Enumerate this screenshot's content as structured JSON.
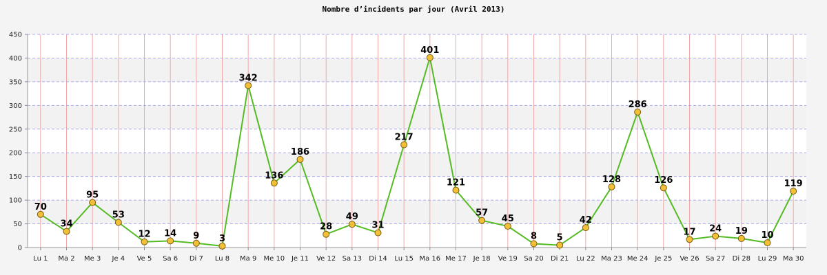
{
  "chart_data": {
    "type": "line",
    "title": "Nombre d’incidents par jour (Avril 2013)",
    "xlabel": "",
    "ylabel": "",
    "ylim": [
      0,
      450
    ],
    "yticks": [
      0,
      50,
      100,
      150,
      200,
      250,
      300,
      350,
      400,
      450
    ],
    "categories": [
      "Lu 1",
      "Ma 2",
      "Me 3",
      "Je 4",
      "Ve 5",
      "Sa 6",
      "Di 7",
      "Lu 8",
      "Ma 9",
      "Me 10",
      "Je 11",
      "Ve 12",
      "Sa 13",
      "Di 14",
      "Lu 15",
      "Ma 16",
      "Me 17",
      "Je 18",
      "Ve 19",
      "Sa 20",
      "Di 21",
      "Lu 22",
      "Ma 23",
      "Me 24",
      "Je 25",
      "Ve 26",
      "Sa 27",
      "Di 28",
      "Lu 29",
      "Ma 30"
    ],
    "values": [
      70,
      34,
      95,
      53,
      12,
      14,
      9,
      3,
      342,
      136,
      186,
      28,
      49,
      31,
      217,
      401,
      121,
      57,
      45,
      8,
      5,
      42,
      128,
      286,
      126,
      17,
      24,
      19,
      10,
      119
    ],
    "grid": true,
    "colors": {
      "line": "#55bb22",
      "marker_fill": "#f2c037",
      "marker_stroke": "#7a5a10",
      "vgrid": "#f0a8a8",
      "hgrid": "#aaaaee",
      "band_light": "#ffffff",
      "band_dark": "#f2f2f2"
    }
  }
}
